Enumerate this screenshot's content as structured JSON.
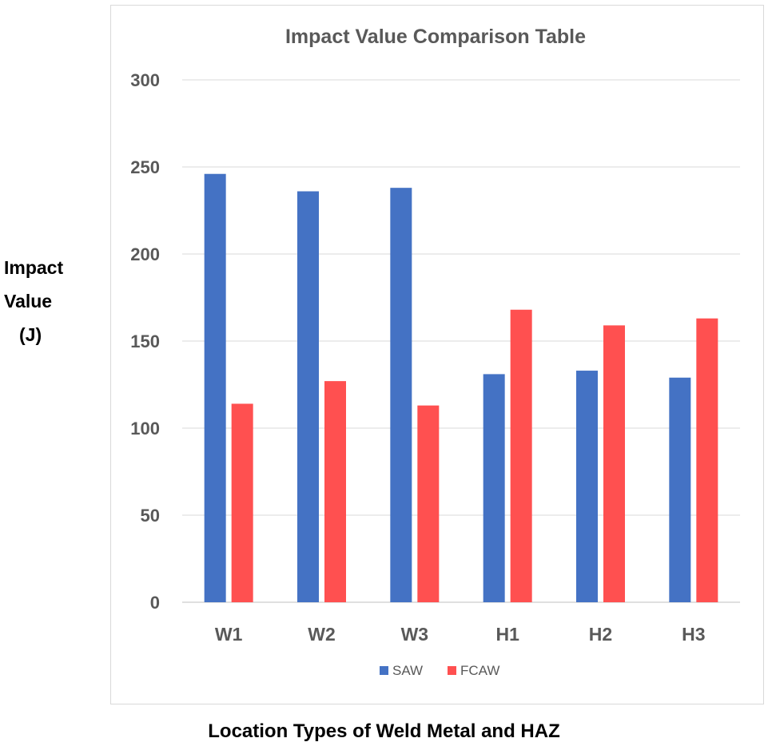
{
  "chart_data": {
    "type": "bar",
    "title": "Impact Value Comparison Table",
    "categories": [
      "W1",
      "W2",
      "W3",
      "H1",
      "H2",
      "H3"
    ],
    "series": [
      {
        "name": "SAW",
        "color": "#4472c4",
        "values": [
          246,
          236,
          238,
          131,
          133,
          129
        ]
      },
      {
        "name": "FCAW",
        "color": "#ff5050",
        "values": [
          114,
          127,
          113,
          168,
          159,
          163
        ]
      }
    ],
    "ylim": [
      0,
      300
    ],
    "yticks": [
      0,
      50,
      100,
      150,
      200,
      250,
      300
    ],
    "ylabel": {
      "line1": "Impact",
      "line2": "Value",
      "line3": "(J)"
    },
    "xlabel": "Location Types of Weld Metal and HAZ",
    "legend_position": "bottom",
    "grid": true
  }
}
